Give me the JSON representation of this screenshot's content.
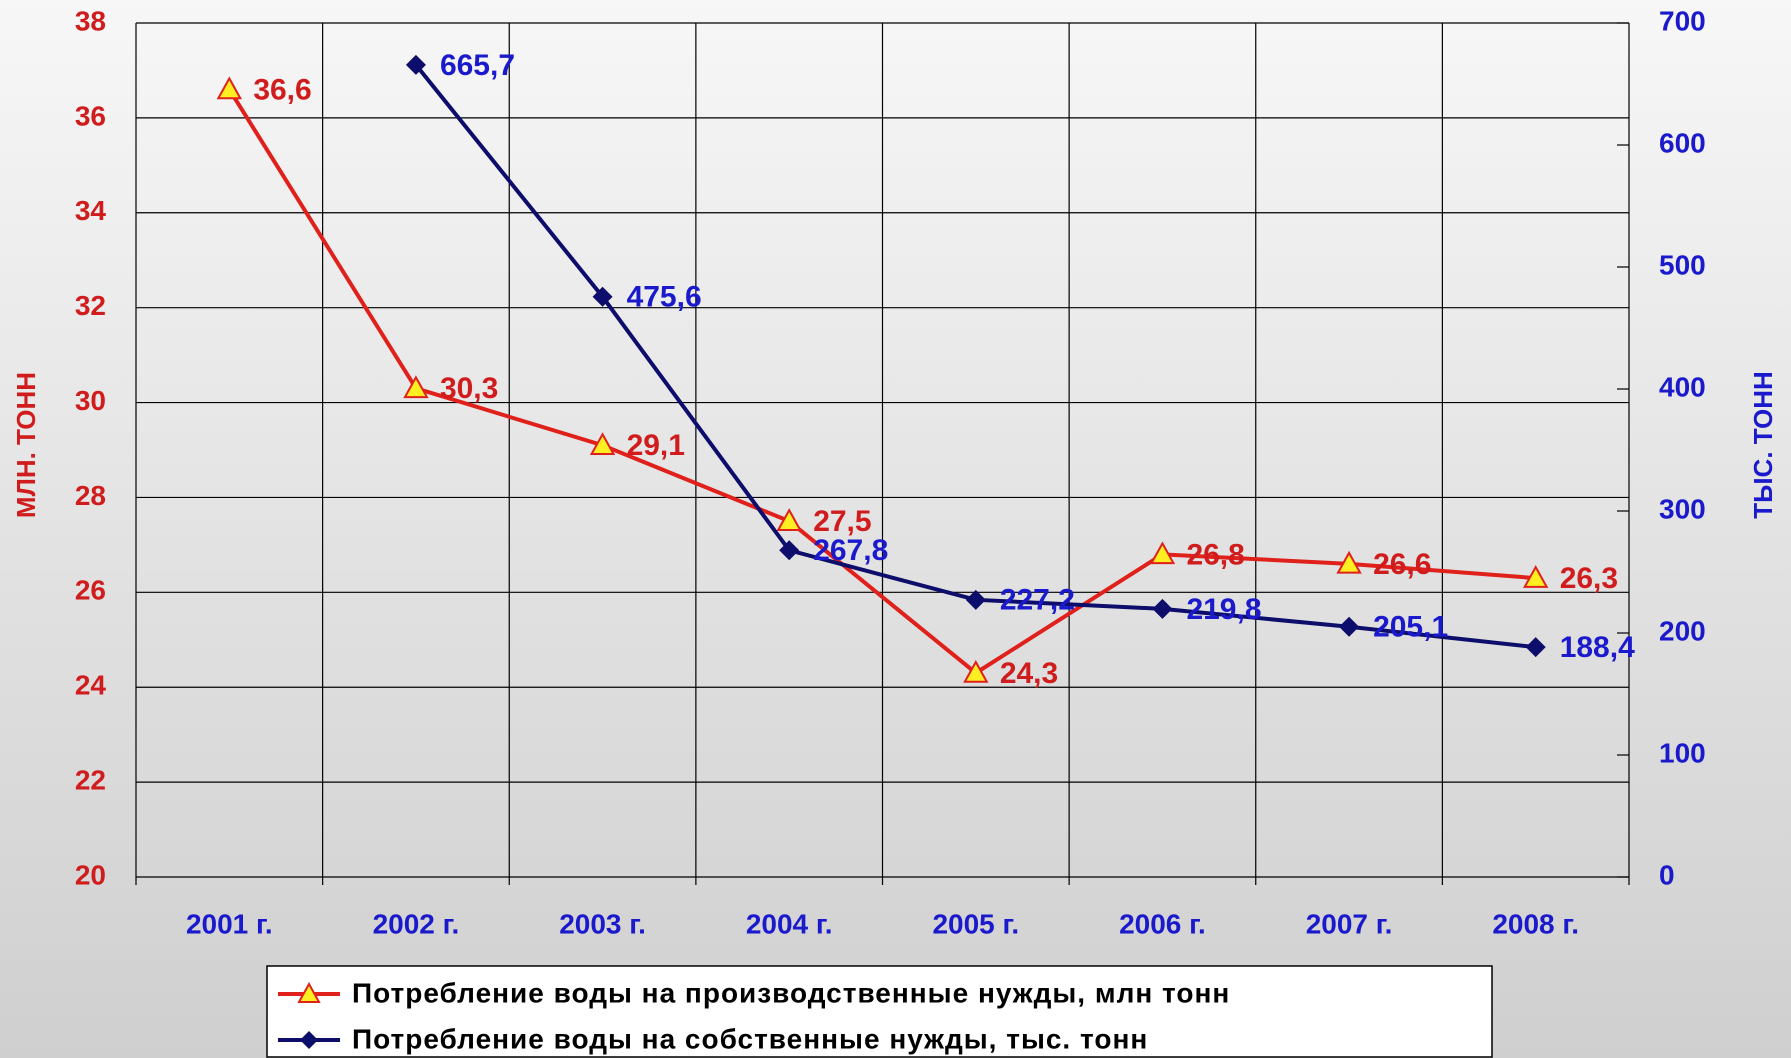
{
  "chart_data": {
    "type": "line",
    "y_label": "МЛН. ТОНН",
    "y2_label": "ТЫС. ТОНН",
    "categories": [
      "2001 г.",
      "2002 г.",
      "2003 г.",
      "2004 г.",
      "2005 г.",
      "2006 г.",
      "2007 г.",
      "2008 г."
    ],
    "series": [
      {
        "name": "Потребление воды на производственные нужды, млн тонн",
        "color": "#e0201b",
        "values": [
          36.6,
          30.3,
          29.1,
          27.5,
          24.3,
          26.8,
          26.6,
          26.3
        ],
        "value_labels": [
          "36,6",
          "30,3",
          "29,1",
          "27,5",
          "24,3",
          "26,8",
          "26,6",
          "26,3"
        ]
      },
      {
        "name": "Потребление воды на собственные нужды, тыс. тонн",
        "color": "#0d0d6b",
        "axis": "y2",
        "values": [
          null,
          665.7,
          475.6,
          267.8,
          227.2,
          219.8,
          205.1,
          188.4
        ],
        "value_labels": [
          null,
          "665,7",
          "475,6",
          "267,8",
          "227,2",
          "219,8",
          "205,1",
          "188,4"
        ]
      }
    ],
    "ylim": [
      20,
      38
    ],
    "yticks": [
      20,
      22,
      24,
      26,
      28,
      30,
      32,
      34,
      36,
      38
    ],
    "y2lim": [
      0,
      700
    ],
    "y2ticks": [
      0,
      100,
      200,
      300,
      400,
      500,
      600,
      700
    ],
    "grid": true,
    "legend": "bottom"
  }
}
